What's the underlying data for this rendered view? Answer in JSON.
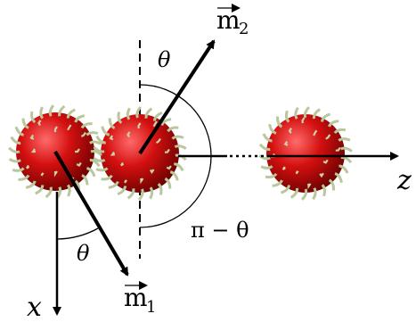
{
  "labels": {
    "m2": {
      "symbol": "m",
      "subscript": "2"
    },
    "m1": {
      "symbol": "m",
      "subscript": "1"
    },
    "theta_top": "θ",
    "pi_minus_theta": "π − θ",
    "theta_bottom": "θ",
    "x_axis": "x",
    "z_axis": "z"
  }
}
